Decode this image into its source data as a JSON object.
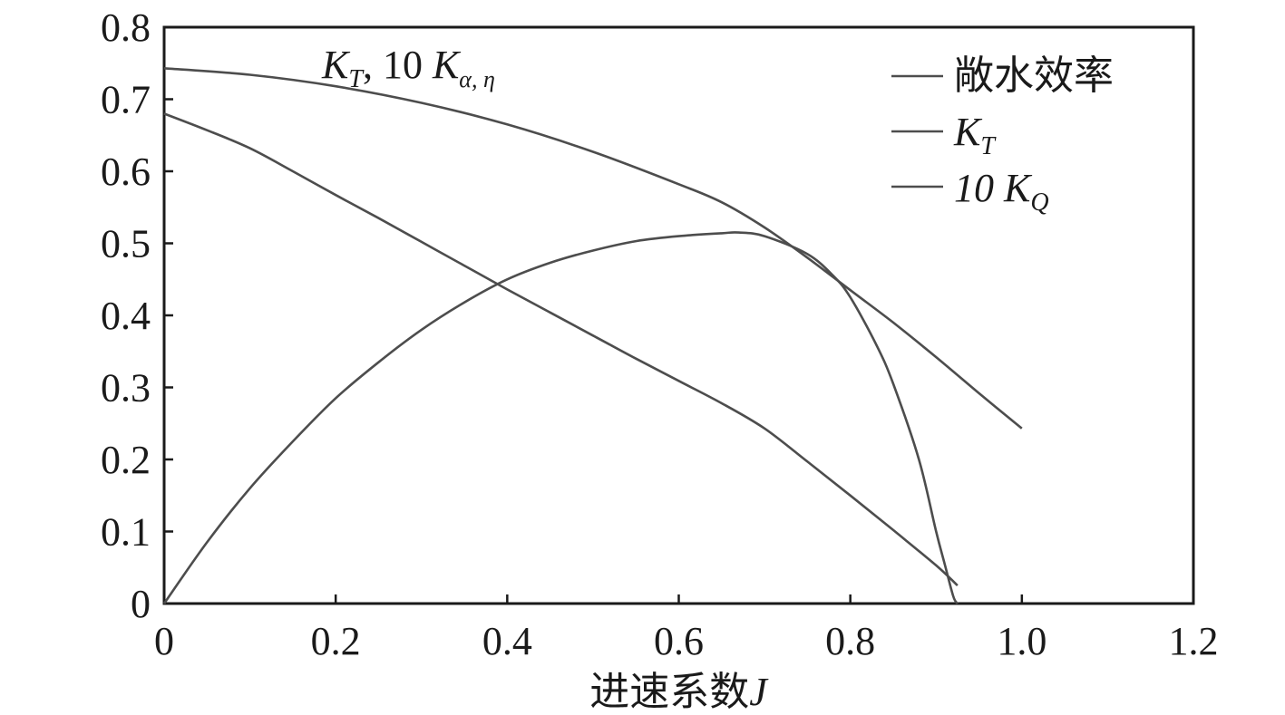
{
  "chart_data": {
    "type": "line",
    "xlabel": "进速系数J",
    "xlabel_main": "进速系数",
    "xlabel_var": "J",
    "xlim": [
      0,
      1.2
    ],
    "ylim": [
      0,
      0.8
    ],
    "x_ticks": [
      "0",
      "0.2",
      "0.4",
      "0.6",
      "0.8",
      "1.0",
      "1.2"
    ],
    "y_ticks": [
      "0",
      "0.1",
      "0.2",
      "0.3",
      "0.4",
      "0.5",
      "0.6",
      "0.7",
      "0.8"
    ],
    "grid": false,
    "legend_position": "top-right",
    "annotation": {
      "K": "K",
      "sub_T": "T",
      "middle": ", 10 ",
      "K2": "K",
      "sub_2": "α, η"
    },
    "legend": [
      {
        "main": "敞水效率",
        "sub": ""
      },
      {
        "main": "K",
        "sub": "T"
      },
      {
        "main": "10 K",
        "sub": "Q"
      }
    ],
    "series": [
      {
        "name": "敞水效率",
        "color": "#4d4d4d",
        "x": [
          0,
          0.05,
          0.1,
          0.15,
          0.2,
          0.25,
          0.3,
          0.35,
          0.4,
          0.45,
          0.5,
          0.55,
          0.6,
          0.65,
          0.67,
          0.7,
          0.75,
          0.78,
          0.8,
          0.83,
          0.85,
          0.88,
          0.9,
          0.91,
          0.92,
          0.925
        ],
        "y": [
          0,
          0.085,
          0.16,
          0.225,
          0.285,
          0.335,
          0.38,
          0.418,
          0.45,
          0.473,
          0.49,
          0.503,
          0.51,
          0.514,
          0.515,
          0.51,
          0.485,
          0.455,
          0.425,
          0.36,
          0.305,
          0.2,
          0.1,
          0.055,
          0.01,
          0
        ]
      },
      {
        "name": "KT",
        "color": "#4d4d4d",
        "x": [
          0,
          0.05,
          0.1,
          0.15,
          0.2,
          0.25,
          0.3,
          0.35,
          0.4,
          0.45,
          0.5,
          0.55,
          0.6,
          0.65,
          0.7,
          0.75,
          0.8,
          0.85,
          0.9,
          0.925
        ],
        "y": [
          0.68,
          0.657,
          0.632,
          0.6,
          0.567,
          0.535,
          0.502,
          0.469,
          0.436,
          0.404,
          0.372,
          0.34,
          0.309,
          0.278,
          0.243,
          0.197,
          0.15,
          0.102,
          0.053,
          0.025
        ]
      },
      {
        "name": "10KQ",
        "color": "#4d4d4d",
        "x": [
          0,
          0.1,
          0.2,
          0.3,
          0.4,
          0.5,
          0.6,
          0.65,
          0.7,
          0.75,
          0.8,
          0.85,
          0.9,
          0.95,
          1.0
        ],
        "y": [
          0.743,
          0.734,
          0.718,
          0.695,
          0.665,
          0.627,
          0.582,
          0.557,
          0.522,
          0.48,
          0.435,
          0.39,
          0.342,
          0.292,
          0.243
        ]
      }
    ]
  }
}
